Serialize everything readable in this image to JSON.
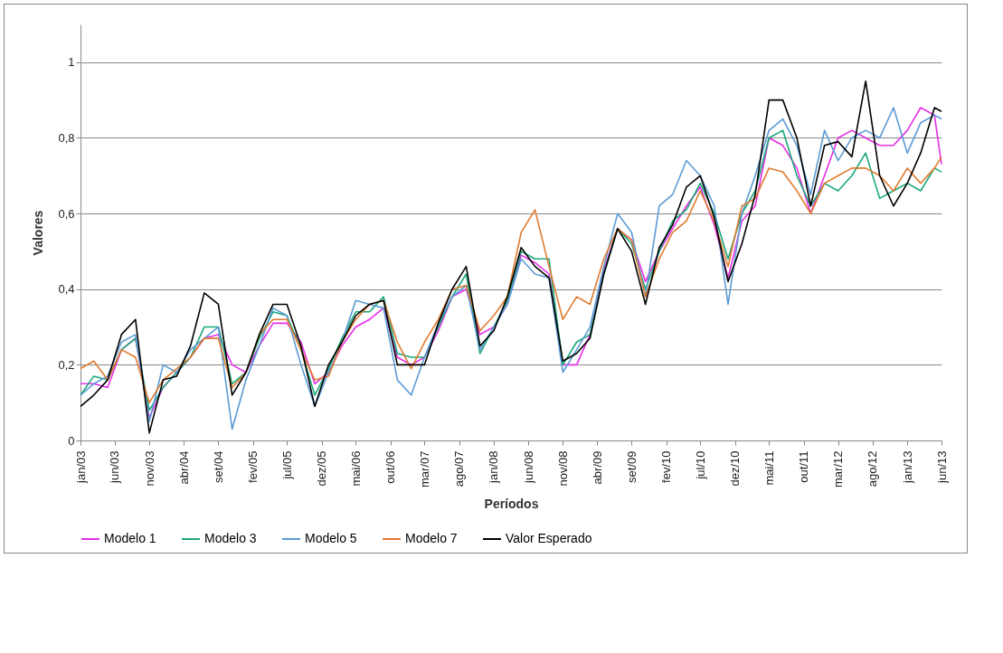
{
  "chart_data": {
    "type": "line",
    "xlabel": "Períodos",
    "ylabel": "Valores",
    "grid": "y",
    "legend": "bottom",
    "x": [
      "2003-01",
      "2003-03",
      "2003-05",
      "2003-07",
      "2003-09",
      "2003-11",
      "2004-01",
      "2004-03",
      "2004-05",
      "2004-07",
      "2004-09",
      "2004-11",
      "2005-01",
      "2005-03",
      "2005-05",
      "2005-07",
      "2005-09",
      "2005-11",
      "2006-01",
      "2006-03",
      "2006-05",
      "2006-07",
      "2006-09",
      "2006-11",
      "2007-01",
      "2007-03",
      "2007-05",
      "2007-07",
      "2007-09",
      "2007-11",
      "2008-01",
      "2008-03",
      "2008-05",
      "2008-07",
      "2008-09",
      "2008-11",
      "2009-01",
      "2009-03",
      "2009-05",
      "2009-07",
      "2009-09",
      "2009-11",
      "2010-01",
      "2010-03",
      "2010-05",
      "2010-07",
      "2010-09",
      "2010-11",
      "2011-01",
      "2011-03",
      "2011-05",
      "2011-07",
      "2011-09",
      "2011-11",
      "2012-01",
      "2012-03",
      "2012-05",
      "2012-07",
      "2012-09",
      "2012-11",
      "2013-01",
      "2013-03",
      "2013-05",
      "2013-06"
    ],
    "xlim": [
      "2003-01",
      "2013-06"
    ],
    "xticks": [
      {
        "value": "2003-01",
        "label": "jan/03"
      },
      {
        "value": "2003-06",
        "label": "jun/03"
      },
      {
        "value": "2003-11",
        "label": "nov/03"
      },
      {
        "value": "2004-04",
        "label": "abr/04"
      },
      {
        "value": "2004-09",
        "label": "set/04"
      },
      {
        "value": "2005-02",
        "label": "fev/05"
      },
      {
        "value": "2005-07",
        "label": "jul/05"
      },
      {
        "value": "2005-12",
        "label": "dez/05"
      },
      {
        "value": "2006-05",
        "label": "mai/06"
      },
      {
        "value": "2006-10",
        "label": "out/06"
      },
      {
        "value": "2007-03",
        "label": "mar/07"
      },
      {
        "value": "2007-08",
        "label": "ago/07"
      },
      {
        "value": "2008-01",
        "label": "jan/08"
      },
      {
        "value": "2008-06",
        "label": "jun/08"
      },
      {
        "value": "2008-11",
        "label": "nov/08"
      },
      {
        "value": "2009-04",
        "label": "abr/09"
      },
      {
        "value": "2009-09",
        "label": "set/09"
      },
      {
        "value": "2010-02",
        "label": "fev/10"
      },
      {
        "value": "2010-07",
        "label": "jul/10"
      },
      {
        "value": "2010-12",
        "label": "dez/10"
      },
      {
        "value": "2011-05",
        "label": "mai/11"
      },
      {
        "value": "2011-10",
        "label": "out/11"
      },
      {
        "value": "2012-03",
        "label": "mar/12"
      },
      {
        "value": "2012-08",
        "label": "ago/12"
      },
      {
        "value": "2013-01",
        "label": "jan/13"
      },
      {
        "value": "2013-06",
        "label": "jun/13"
      }
    ],
    "ylim": [
      0,
      1.1
    ],
    "yticks": [
      {
        "value": 0,
        "label": "0"
      },
      {
        "value": 0.2,
        "label": "0,2"
      },
      {
        "value": 0.4,
        "label": "0,4"
      },
      {
        "value": 0.6,
        "label": "0,6"
      },
      {
        "value": 0.8,
        "label": "0,8"
      },
      {
        "value": 1,
        "label": "1"
      }
    ],
    "series": [
      {
        "name": "Modelo 1",
        "color": "#e62ee6",
        "values": [
          0.15,
          0.15,
          0.14,
          0.24,
          0.27,
          0.06,
          0.14,
          0.18,
          0.22,
          0.27,
          0.28,
          0.2,
          0.18,
          0.25,
          0.31,
          0.31,
          0.26,
          0.15,
          0.18,
          0.25,
          0.3,
          0.32,
          0.35,
          0.22,
          0.2,
          0.22,
          0.29,
          0.38,
          0.4,
          0.28,
          0.3,
          0.36,
          0.49,
          0.47,
          0.44,
          0.2,
          0.2,
          0.28,
          0.45,
          0.56,
          0.53,
          0.42,
          0.5,
          0.56,
          0.62,
          0.67,
          0.57,
          0.43,
          0.58,
          0.62,
          0.8,
          0.78,
          0.72,
          0.6,
          0.7,
          0.8,
          0.82,
          0.8,
          0.78,
          0.78,
          0.82,
          0.88,
          0.86,
          0.73
        ]
      },
      {
        "name": "Modelo 3",
        "color": "#1aa87a",
        "values": [
          0.12,
          0.17,
          0.16,
          0.24,
          0.27,
          0.08,
          0.14,
          0.18,
          0.22,
          0.3,
          0.3,
          0.15,
          0.18,
          0.27,
          0.34,
          0.33,
          0.24,
          0.12,
          0.19,
          0.27,
          0.34,
          0.34,
          0.38,
          0.23,
          0.22,
          0.22,
          0.3,
          0.38,
          0.44,
          0.23,
          0.3,
          0.37,
          0.5,
          0.48,
          0.48,
          0.2,
          0.26,
          0.28,
          0.44,
          0.56,
          0.52,
          0.4,
          0.5,
          0.58,
          0.61,
          0.68,
          0.6,
          0.48,
          0.6,
          0.66,
          0.8,
          0.82,
          0.7,
          0.62,
          0.68,
          0.66,
          0.7,
          0.76,
          0.64,
          0.66,
          0.68,
          0.66,
          0.72,
          0.71
        ]
      },
      {
        "name": "Modelo 5",
        "color": "#5b9bd5",
        "values": [
          0.12,
          0.15,
          0.17,
          0.26,
          0.28,
          0.05,
          0.2,
          0.18,
          0.24,
          0.27,
          0.3,
          0.03,
          0.16,
          0.25,
          0.35,
          0.33,
          0.2,
          0.09,
          0.18,
          0.26,
          0.37,
          0.36,
          0.35,
          0.16,
          0.12,
          0.22,
          0.31,
          0.38,
          0.41,
          0.24,
          0.3,
          0.36,
          0.48,
          0.44,
          0.43,
          0.18,
          0.24,
          0.3,
          0.46,
          0.6,
          0.55,
          0.38,
          0.62,
          0.65,
          0.74,
          0.7,
          0.62,
          0.36,
          0.6,
          0.7,
          0.82,
          0.85,
          0.78,
          0.65,
          0.82,
          0.74,
          0.8,
          0.82,
          0.8,
          0.88,
          0.76,
          0.84,
          0.86,
          0.85
        ]
      },
      {
        "name": "Modelo 7",
        "color": "#e07b30",
        "values": [
          0.19,
          0.21,
          0.16,
          0.24,
          0.22,
          0.1,
          0.16,
          0.19,
          0.22,
          0.27,
          0.27,
          0.14,
          0.18,
          0.28,
          0.32,
          0.32,
          0.24,
          0.16,
          0.17,
          0.26,
          0.32,
          0.36,
          0.37,
          0.26,
          0.19,
          0.26,
          0.32,
          0.4,
          0.41,
          0.29,
          0.33,
          0.38,
          0.55,
          0.61,
          0.46,
          0.32,
          0.38,
          0.36,
          0.48,
          0.56,
          0.53,
          0.38,
          0.48,
          0.55,
          0.58,
          0.66,
          0.58,
          0.46,
          0.62,
          0.64,
          0.72,
          0.71,
          0.66,
          0.6,
          0.68,
          0.7,
          0.72,
          0.72,
          0.7,
          0.66,
          0.72,
          0.68,
          0.72,
          0.75
        ]
      },
      {
        "name": "Valor Esperado",
        "color": "#000000",
        "values": [
          0.09,
          0.12,
          0.16,
          0.28,
          0.32,
          0.02,
          0.16,
          0.17,
          0.25,
          0.39,
          0.36,
          0.12,
          0.18,
          0.28,
          0.36,
          0.36,
          0.25,
          0.09,
          0.2,
          0.26,
          0.33,
          0.36,
          0.37,
          0.2,
          0.2,
          0.2,
          0.31,
          0.4,
          0.46,
          0.25,
          0.29,
          0.38,
          0.51,
          0.46,
          0.43,
          0.21,
          0.23,
          0.27,
          0.44,
          0.56,
          0.5,
          0.36,
          0.51,
          0.57,
          0.67,
          0.7,
          0.59,
          0.42,
          0.52,
          0.65,
          0.9,
          0.9,
          0.8,
          0.62,
          0.78,
          0.79,
          0.75,
          0.95,
          0.7,
          0.62,
          0.68,
          0.76,
          0.88,
          0.87
        ]
      }
    ]
  }
}
